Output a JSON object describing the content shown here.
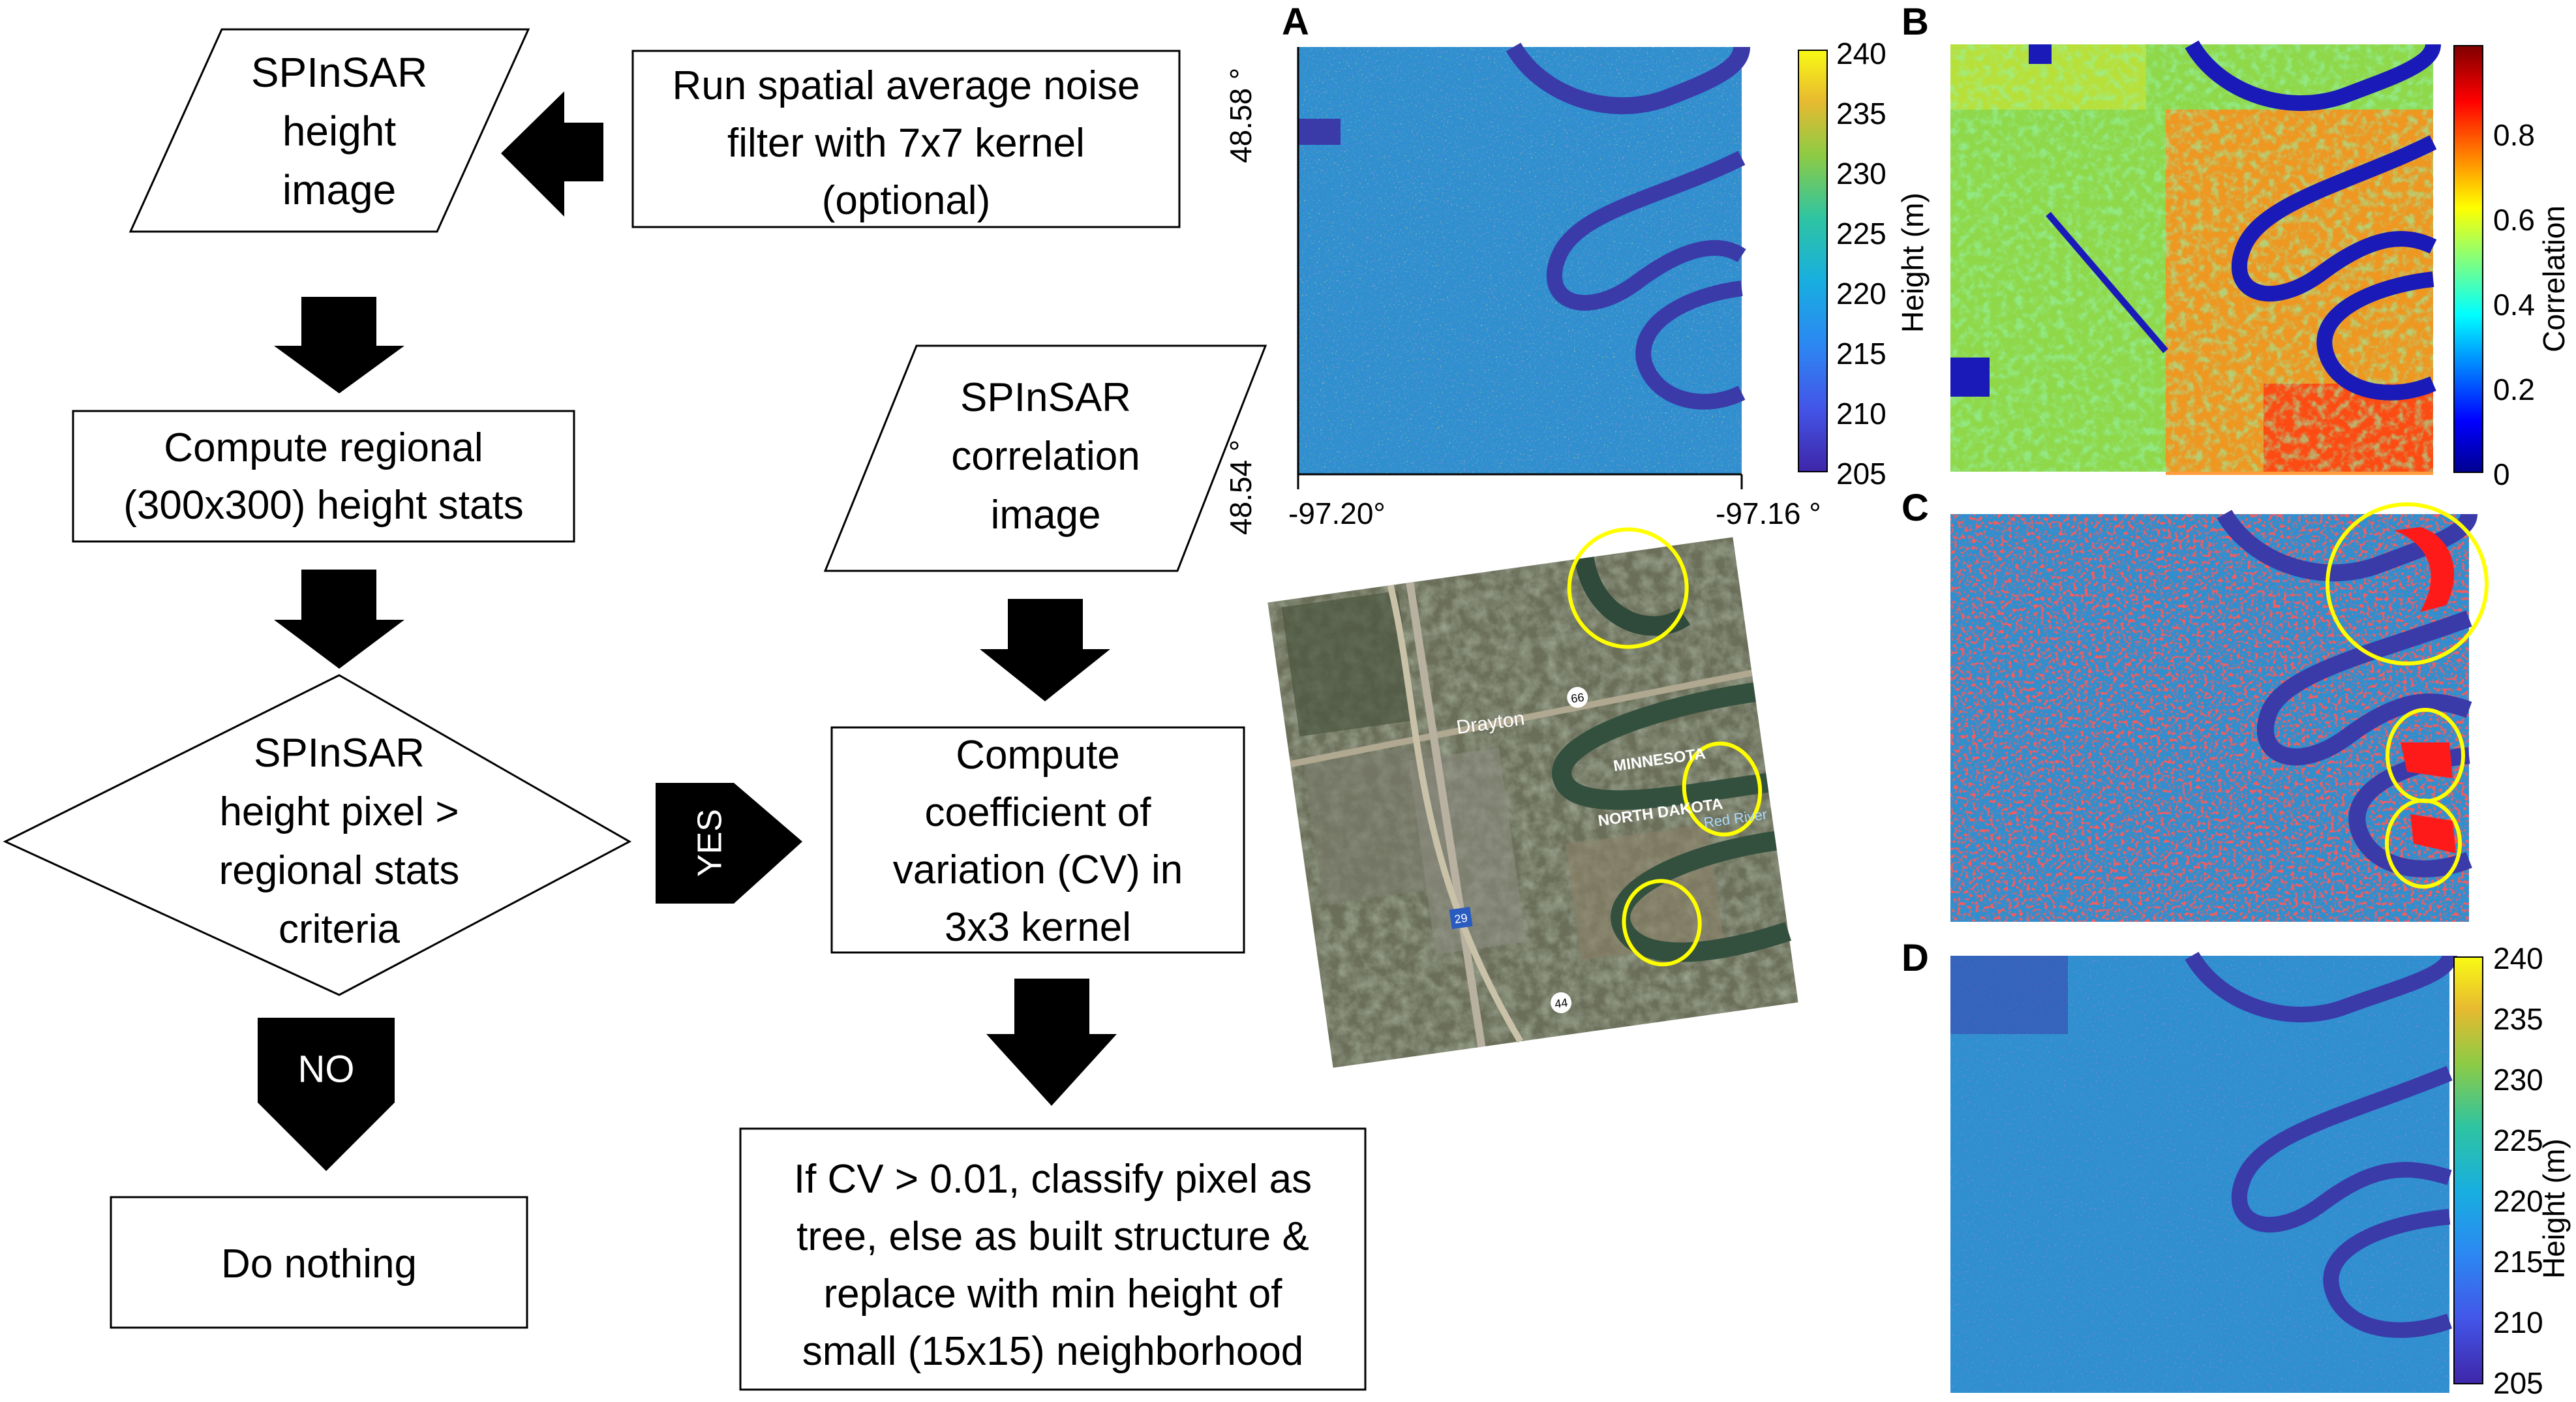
{
  "flowchart": {
    "height_image": [
      "SPInSAR",
      "height",
      "image"
    ],
    "noise_filter": [
      "Run spatial average noise",
      "filter with 7x7 kernel",
      "(optional)"
    ],
    "regional_stats": [
      "Compute regional",
      "(300x300) height stats"
    ],
    "decision": [
      "SPInSAR",
      "height pixel >",
      "regional stats",
      "criteria"
    ],
    "yes_label": "YES",
    "no_label": "NO",
    "do_nothing": "Do nothing",
    "correlation_image": [
      "SPInSAR",
      "correlation",
      "image"
    ],
    "compute_cv": [
      "Compute",
      "coefficient of",
      "variation (CV) in",
      "3x3 kernel"
    ],
    "classify": [
      "If CV > 0.01, classify pixel as",
      "tree, else as built structure &",
      "replace with min height of",
      "small (15x15) neighborhood"
    ]
  },
  "panels": {
    "a_label": "A",
    "b_label": "B",
    "c_label": "C",
    "d_label": "D",
    "a_lat_top": "48.58 °",
    "a_lat_bottom": "48.54 °",
    "a_lon_left": "-97.20°",
    "a_lon_right": "-97.16 °",
    "height_ticks": [
      "240",
      "235",
      "230",
      "225",
      "220",
      "215",
      "210",
      "205"
    ],
    "height_label": "Height (m)",
    "correlation_ticks": [
      "0.8",
      "0.6",
      "0.4",
      "0.2",
      "0"
    ],
    "correlation_label": "Correlation"
  },
  "map_labels": {
    "town": "Drayton",
    "state_north": "MINNESOTA",
    "state_south": "NORTH DAKOTA",
    "river": "Red River",
    "shield_66": "66",
    "shield_29": "29",
    "shield_44": "44"
  },
  "colors": {
    "arrow": "#000000",
    "circle": "#ffff00",
    "river": "#3a3aa8",
    "highlight": "#ff1a1a",
    "background_blue": "#2f8fcf"
  }
}
